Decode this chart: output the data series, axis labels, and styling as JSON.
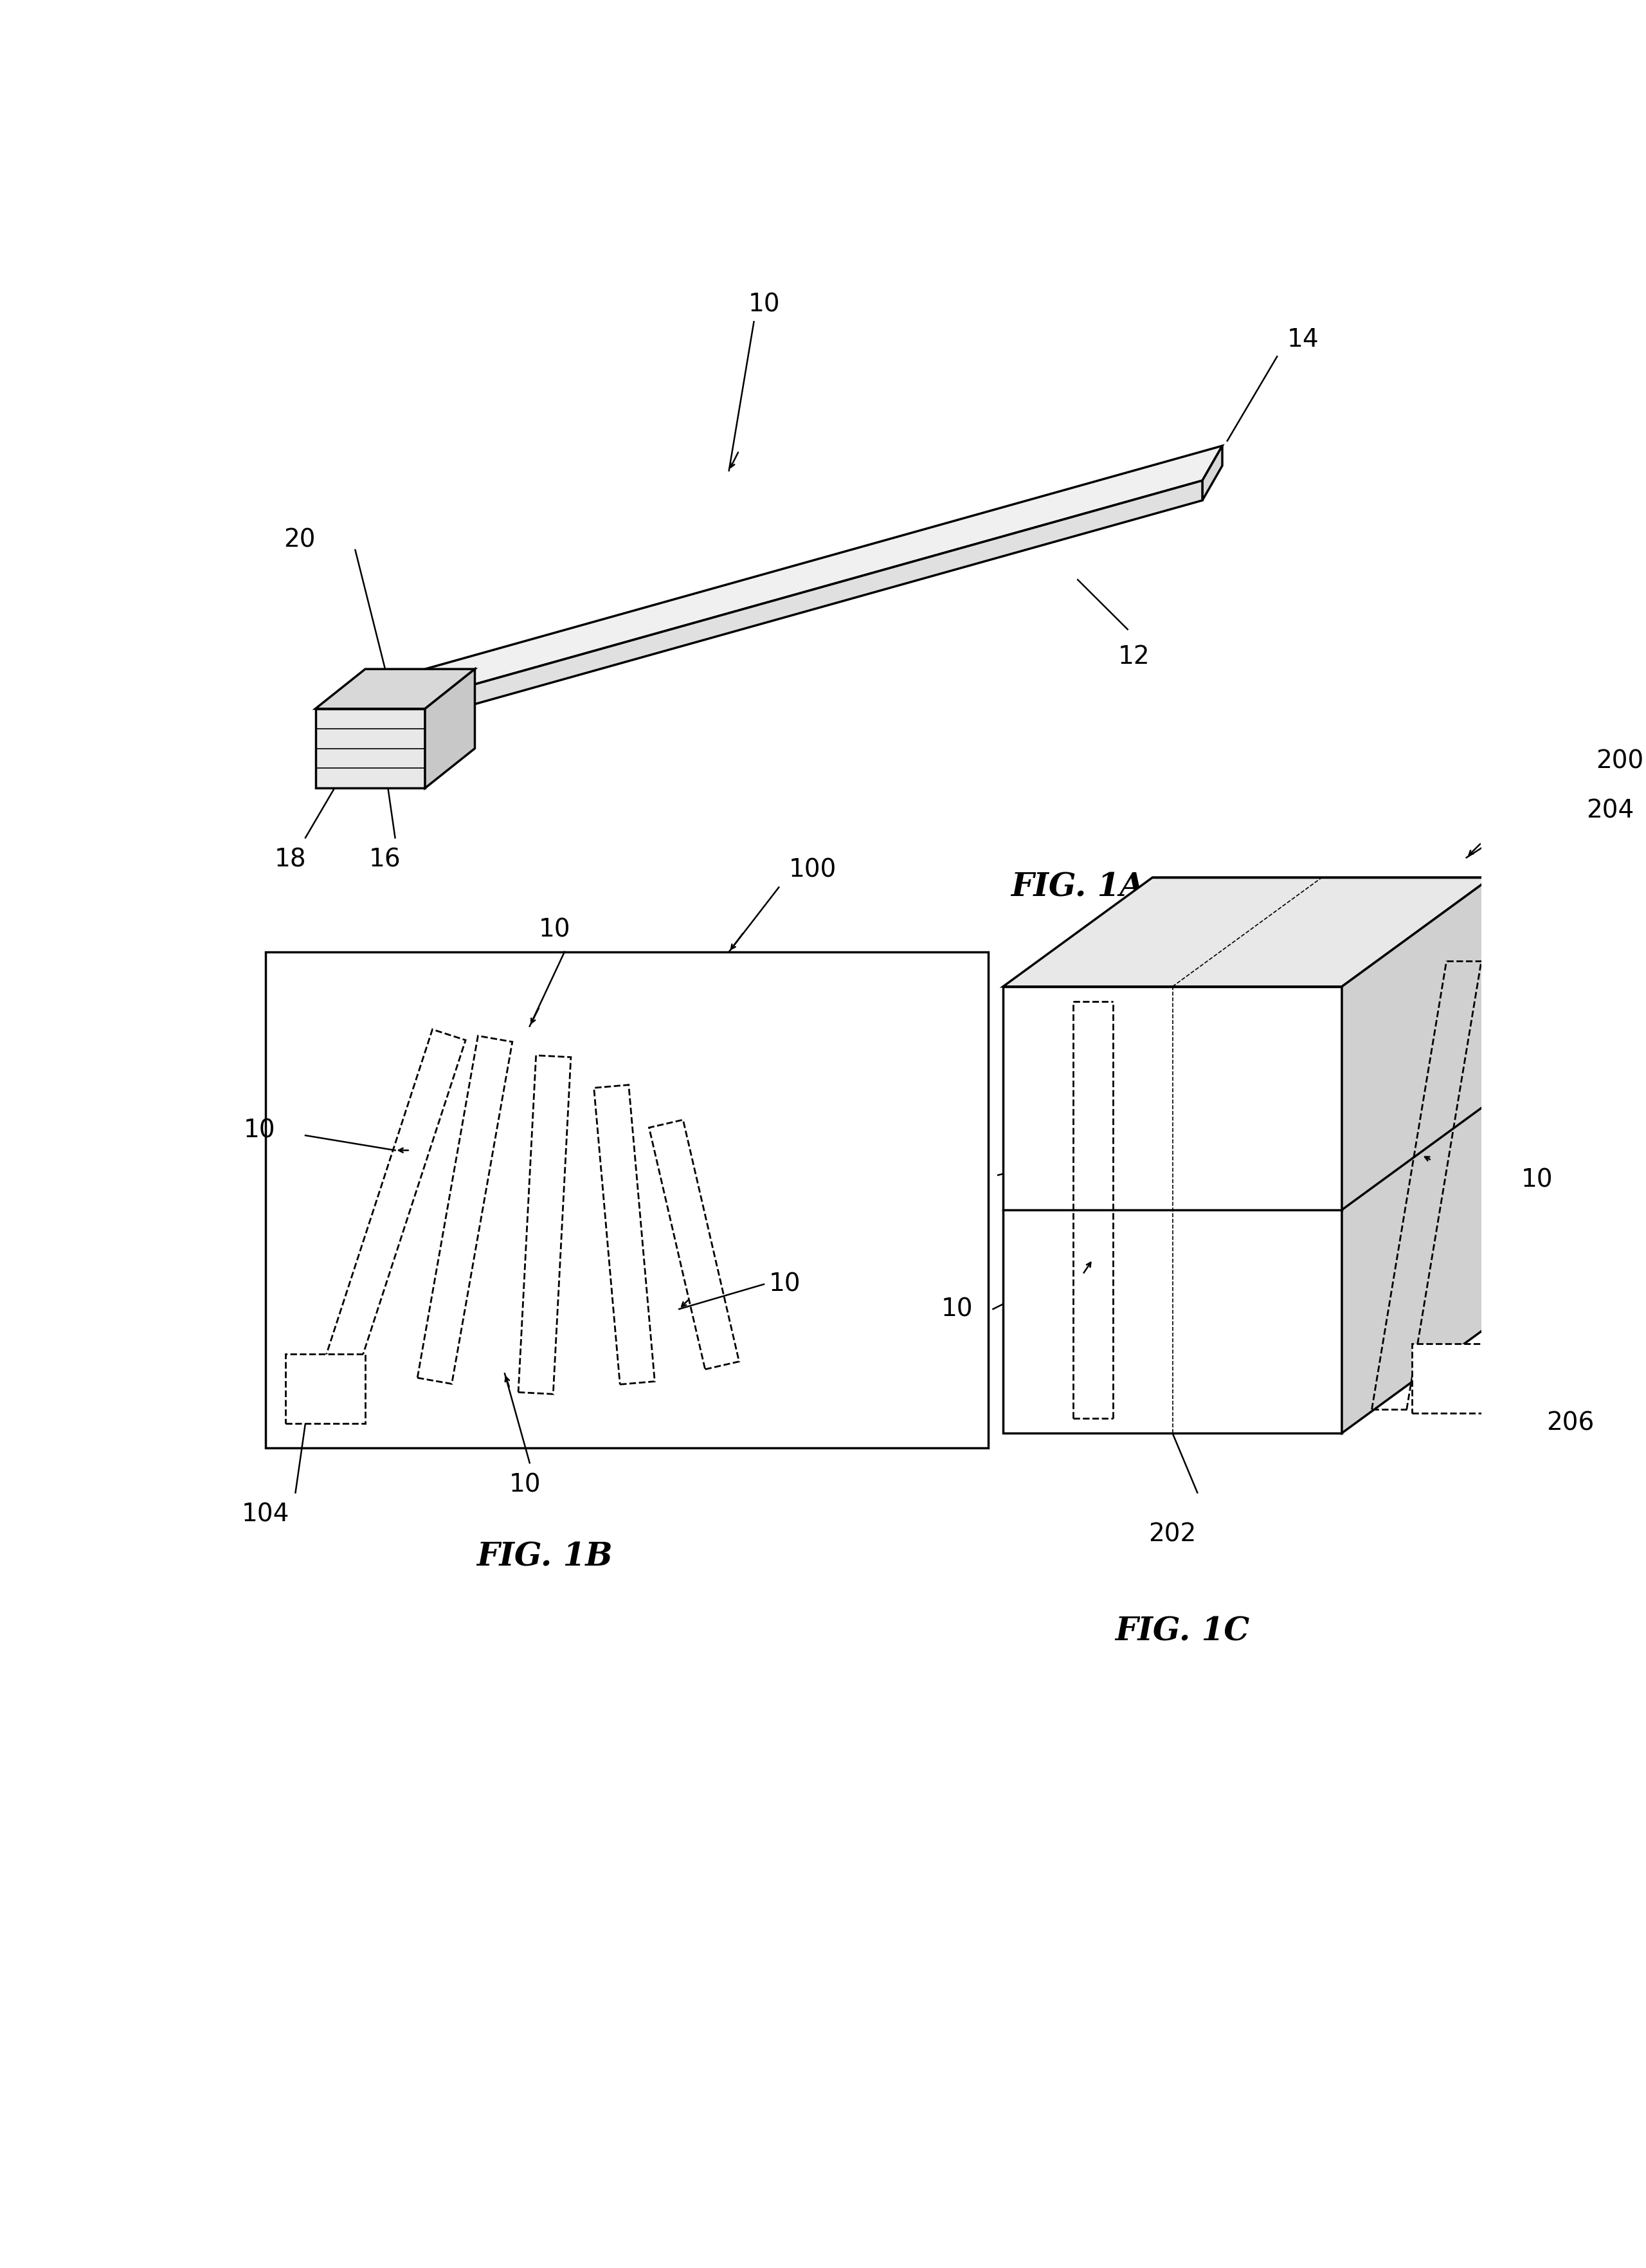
{
  "bg_color": "#ffffff",
  "line_color": "#000000",
  "fig_width": 25.6,
  "fig_height": 35.26,
  "fig1a_label": "FIG. 1A",
  "fig1b_label": "FIG. 1B",
  "fig1c_label": "FIG. 1C",
  "font_size_label": 28,
  "font_size_fig": 36,
  "lw_main": 2.5,
  "lw_dash": 2.0
}
